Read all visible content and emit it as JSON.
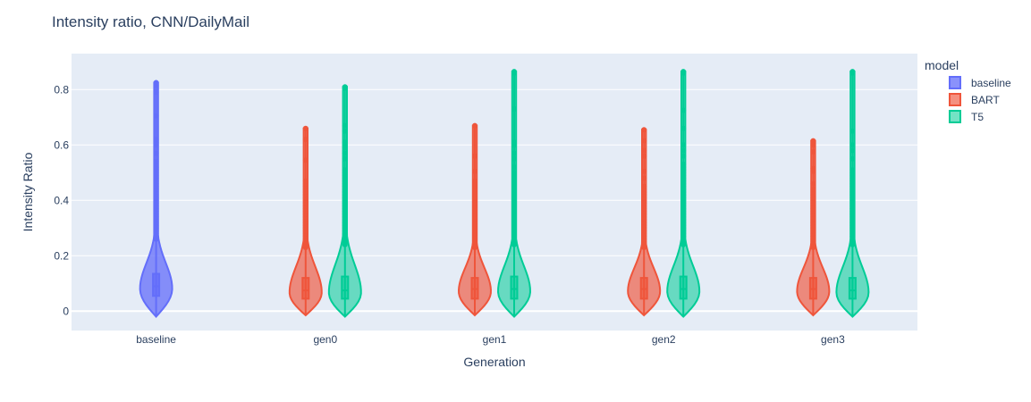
{
  "chart_data": {
    "type": "violin",
    "title": "Intensity ratio, CNN/DailyMail",
    "xlabel": "Generation",
    "ylabel": "Intensity Ratio",
    "categories": [
      "baseline",
      "gen0",
      "gen1",
      "gen2",
      "gen3"
    ],
    "y_ticks": [
      0,
      0.2,
      0.4,
      0.6,
      0.8
    ],
    "ylim": [
      -0.07,
      0.93
    ],
    "grid": true,
    "legend": {
      "title": "model",
      "placement": "right",
      "entries": [
        "baseline",
        "BART",
        "T5"
      ]
    },
    "series": [
      {
        "name": "baseline",
        "color": "#636efa",
        "fill": "rgba(99,110,250,0.75)",
        "groups": [
          {
            "category": "baseline",
            "min": -0.02,
            "q1": 0.055,
            "median": 0.09,
            "q3": 0.135,
            "whisker_high": 0.26,
            "max": 0.825,
            "outliers": [
              0.26,
              0.27,
              0.28,
              0.29,
              0.3,
              0.31,
              0.32,
              0.33,
              0.34,
              0.35,
              0.36,
              0.37,
              0.38,
              0.39,
              0.4,
              0.41,
              0.42,
              0.43,
              0.44,
              0.45,
              0.46,
              0.47,
              0.48,
              0.49,
              0.5,
              0.51,
              0.52,
              0.53,
              0.54,
              0.57,
              0.6,
              0.61,
              0.62,
              0.705,
              0.79,
              0.815,
              0.825
            ]
          }
        ]
      },
      {
        "name": "BART",
        "color": "#ef553b",
        "fill": "rgba(239,85,59,0.65)",
        "groups": [
          {
            "category": "gen0",
            "min": -0.015,
            "q1": 0.045,
            "median": 0.075,
            "q3": 0.12,
            "whisker_high": 0.23,
            "max": 0.66,
            "outliers": [
              0.23,
              0.24,
              0.25,
              0.26,
              0.27,
              0.28,
              0.29,
              0.3,
              0.31,
              0.32,
              0.33,
              0.34,
              0.35,
              0.36,
              0.37,
              0.38,
              0.39,
              0.4,
              0.41,
              0.42,
              0.43,
              0.44,
              0.45,
              0.46,
              0.47,
              0.545,
              0.62,
              0.66
            ]
          },
          {
            "category": "gen1",
            "min": -0.015,
            "q1": 0.045,
            "median": 0.08,
            "q3": 0.12,
            "whisker_high": 0.23,
            "max": 0.67,
            "outliers": [
              0.23,
              0.24,
              0.25,
              0.26,
              0.27,
              0.28,
              0.29,
              0.3,
              0.31,
              0.32,
              0.33,
              0.34,
              0.35,
              0.36,
              0.37,
              0.38,
              0.39,
              0.4,
              0.41,
              0.42,
              0.43,
              0.44,
              0.45,
              0.46,
              0.47,
              0.505,
              0.56,
              0.67
            ]
          },
          {
            "category": "gen2",
            "min": -0.015,
            "q1": 0.045,
            "median": 0.08,
            "q3": 0.12,
            "whisker_high": 0.23,
            "max": 0.655,
            "outliers": [
              0.23,
              0.24,
              0.25,
              0.26,
              0.27,
              0.28,
              0.29,
              0.3,
              0.31,
              0.32,
              0.33,
              0.34,
              0.35,
              0.36,
              0.37,
              0.38,
              0.39,
              0.4,
              0.41,
              0.42,
              0.43,
              0.44,
              0.45,
              0.48,
              0.505,
              0.56,
              0.58,
              0.615,
              0.655
            ]
          },
          {
            "category": "gen3",
            "min": -0.015,
            "q1": 0.045,
            "median": 0.08,
            "q3": 0.12,
            "whisker_high": 0.23,
            "max": 0.615,
            "outliers": [
              0.23,
              0.24,
              0.25,
              0.26,
              0.27,
              0.28,
              0.29,
              0.3,
              0.31,
              0.32,
              0.33,
              0.34,
              0.35,
              0.36,
              0.37,
              0.38,
              0.39,
              0.4,
              0.41,
              0.42,
              0.43,
              0.44,
              0.46,
              0.505,
              0.515,
              0.575,
              0.6,
              0.615
            ]
          }
        ]
      },
      {
        "name": "T5",
        "color": "#00cc96",
        "fill": "rgba(0,204,150,0.55)",
        "groups": [
          {
            "category": "gen0",
            "min": -0.02,
            "q1": 0.045,
            "median": 0.075,
            "q3": 0.125,
            "whisker_high": 0.24,
            "max": 0.81,
            "outliers": [
              0.24,
              0.25,
              0.26,
              0.27,
              0.28,
              0.29,
              0.3,
              0.31,
              0.32,
              0.33,
              0.34,
              0.35,
              0.36,
              0.37,
              0.38,
              0.39,
              0.4,
              0.41,
              0.42,
              0.43,
              0.44,
              0.45,
              0.46,
              0.47,
              0.48,
              0.49,
              0.5,
              0.51,
              0.55,
              0.57,
              0.59,
              0.6,
              0.61,
              0.65,
              0.67,
              0.805,
              0.81
            ]
          },
          {
            "category": "gen1",
            "min": -0.02,
            "q1": 0.045,
            "median": 0.08,
            "q3": 0.125,
            "whisker_high": 0.24,
            "max": 0.865,
            "outliers": [
              0.24,
              0.25,
              0.26,
              0.27,
              0.28,
              0.29,
              0.3,
              0.31,
              0.32,
              0.33,
              0.34,
              0.35,
              0.36,
              0.37,
              0.38,
              0.39,
              0.4,
              0.41,
              0.42,
              0.43,
              0.44,
              0.45,
              0.46,
              0.47,
              0.48,
              0.49,
              0.5,
              0.52,
              0.55,
              0.57,
              0.6,
              0.61,
              0.73,
              0.86,
              0.865
            ]
          },
          {
            "category": "gen2",
            "min": -0.02,
            "q1": 0.045,
            "median": 0.08,
            "q3": 0.125,
            "whisker_high": 0.24,
            "max": 0.865,
            "outliers": [
              0.24,
              0.25,
              0.26,
              0.27,
              0.28,
              0.29,
              0.3,
              0.31,
              0.32,
              0.33,
              0.34,
              0.35,
              0.36,
              0.37,
              0.38,
              0.39,
              0.4,
              0.41,
              0.42,
              0.43,
              0.44,
              0.45,
              0.46,
              0.47,
              0.48,
              0.49,
              0.5,
              0.51,
              0.52,
              0.53,
              0.56,
              0.58,
              0.6,
              0.66,
              0.725,
              0.86,
              0.865
            ]
          },
          {
            "category": "gen3",
            "min": -0.02,
            "q1": 0.045,
            "median": 0.075,
            "q3": 0.12,
            "whisker_high": 0.24,
            "max": 0.865,
            "outliers": [
              0.24,
              0.25,
              0.26,
              0.27,
              0.28,
              0.29,
              0.3,
              0.31,
              0.32,
              0.33,
              0.34,
              0.35,
              0.36,
              0.37,
              0.38,
              0.39,
              0.4,
              0.41,
              0.42,
              0.43,
              0.44,
              0.45,
              0.46,
              0.47,
              0.48,
              0.49,
              0.5,
              0.51,
              0.55,
              0.58,
              0.6,
              0.65,
              0.86,
              0.865
            ]
          }
        ]
      }
    ]
  }
}
